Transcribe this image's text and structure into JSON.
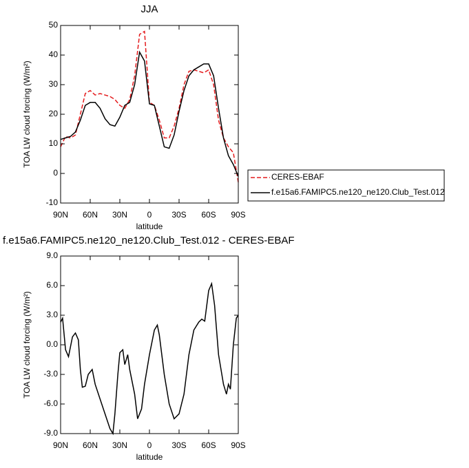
{
  "chart_data": [
    {
      "type": "line",
      "title": "JJA",
      "x_label": "latitude",
      "y_label": "TOA LW cloud forcing (W/m²)",
      "x": [
        90,
        85,
        80,
        75,
        70,
        65,
        60,
        55,
        50,
        45,
        40,
        35,
        30,
        25,
        20,
        15,
        10,
        5,
        0,
        -5,
        -10,
        -15,
        -20,
        -25,
        -30,
        -35,
        -40,
        -45,
        -50,
        -55,
        -60,
        -65,
        -70,
        -75,
        -80,
        -85,
        -90
      ],
      "series": [
        {
          "name": "CERES-EBAF",
          "color": "#e41a1c",
          "line_style": "dashed",
          "values": [
            9,
            12.5,
            12,
            13,
            20,
            27,
            28,
            26.5,
            27,
            26.5,
            26,
            25,
            23,
            22,
            25,
            33,
            47,
            48,
            24,
            23,
            18,
            12,
            12,
            16,
            22,
            30,
            34.5,
            35,
            34.5,
            34,
            35,
            30,
            18,
            12,
            9,
            7,
            -3
          ]
        },
        {
          "name": "f.e15a6.FAMIPC5.ne120_ne120.Club_Test.012",
          "color": "#000000",
          "line_style": "solid",
          "values": [
            11.5,
            12,
            12.5,
            14,
            18,
            23,
            24,
            24,
            22,
            18.5,
            16.5,
            16,
            19,
            23,
            24,
            30,
            41,
            38,
            23.5,
            23,
            16,
            9,
            8.5,
            13,
            21,
            28,
            33,
            35,
            36,
            37,
            37,
            33,
            22,
            12,
            6,
            3,
            -1
          ]
        }
      ],
      "xlim": [
        90,
        -90
      ],
      "xticks": [
        {
          "value": 90,
          "label": "90N"
        },
        {
          "value": 60,
          "label": "60N"
        },
        {
          "value": 30,
          "label": "30N"
        },
        0,
        {
          "value": -30,
          "label": "30S"
        },
        {
          "value": -60,
          "label": "60S"
        },
        {
          "value": -90,
          "label": "90S"
        }
      ],
      "ylim": [
        -10,
        50
      ],
      "yticks": [
        -10,
        0,
        10,
        20,
        30,
        40,
        50
      ],
      "legend": "right"
    },
    {
      "type": "line",
      "title": "f.e15a6.FAMIPC5.ne120_ne120.Club_Test.012 - CERES-EBAF",
      "x_label": "latitude",
      "y_label": "TOA LW cloud forcing (W/m²)",
      "x": [
        90,
        88,
        85,
        82,
        78,
        75,
        72,
        70,
        68,
        65,
        62,
        58,
        55,
        50,
        45,
        40,
        37,
        35,
        32,
        30,
        27,
        25,
        22,
        20,
        15,
        12,
        10,
        8,
        5,
        0,
        -5,
        -8,
        -10,
        -15,
        -20,
        -25,
        -30,
        -35,
        -40,
        -45,
        -50,
        -53,
        -56,
        -60,
        -63,
        -66,
        -70,
        -75,
        -78,
        -80,
        -82,
        -85,
        -88,
        -90
      ],
      "series": [
        {
          "color": "#000000",
          "line_style": "solid",
          "values": [
            2.3,
            2.7,
            -0.5,
            -1.2,
            0.8,
            1.2,
            0.5,
            -2.5,
            -4.3,
            -4.2,
            -3,
            -2.5,
            -4,
            -5.5,
            -7,
            -8.5,
            -9,
            -7,
            -3,
            -0.8,
            -0.5,
            -2,
            -1,
            -2.5,
            -5,
            -7.5,
            -7,
            -6.5,
            -4,
            -1,
            1.5,
            2,
            1,
            -3,
            -6,
            -7.5,
            -7,
            -5,
            -1,
            1.5,
            2.3,
            2.6,
            2.4,
            5.5,
            6.2,
            4,
            -1,
            -4,
            -5,
            -4,
            -4.5,
            0,
            2.7,
            3
          ]
        }
      ],
      "xlim": [
        90,
        -90
      ],
      "xticks": [
        {
          "value": 90,
          "label": "90N"
        },
        {
          "value": 60,
          "label": "60N"
        },
        {
          "value": 30,
          "label": "30N"
        },
        0,
        {
          "value": -30,
          "label": "30S"
        },
        {
          "value": -60,
          "label": "60S"
        },
        {
          "value": -90,
          "label": "90S"
        }
      ],
      "ylim": [
        -9,
        9
      ],
      "yticks": [
        {
          "value": -9,
          "label": "-9.0"
        },
        {
          "value": -6,
          "label": "-6.0"
        },
        {
          "value": -3,
          "label": "-3.0"
        },
        {
          "value": 0,
          "label": "0.0"
        },
        {
          "value": 3,
          "label": "3.0"
        },
        {
          "value": 6,
          "label": "6.0"
        },
        {
          "value": 9,
          "label": "9.0"
        }
      ]
    }
  ]
}
